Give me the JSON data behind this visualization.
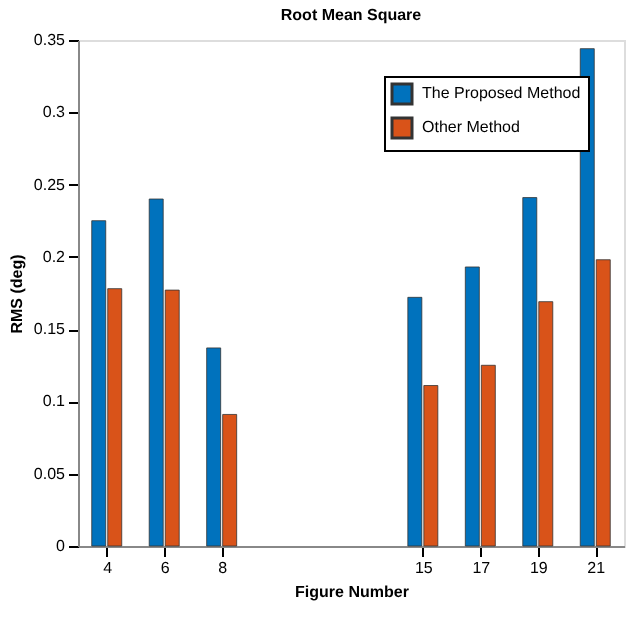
{
  "chart_data": {
    "type": "bar",
    "title": "Root Mean Square",
    "xlabel": "Figure Number",
    "ylabel": "RMS (deg)",
    "x": [
      4,
      6,
      8,
      15,
      17,
      19,
      21
    ],
    "series": [
      {
        "name": "The Proposed Method",
        "color": "#0072bd",
        "values": [
          0.225,
          0.24,
          0.137,
          0.172,
          0.193,
          0.241,
          0.344
        ]
      },
      {
        "name": "Other Method",
        "color": "#d95319",
        "values": [
          0.178,
          0.177,
          0.091,
          0.111,
          0.125,
          0.169,
          0.198
        ]
      }
    ],
    "xlim": [
      3,
      22
    ],
    "xticks": [
      4,
      6,
      8,
      15,
      17,
      19,
      21
    ],
    "ylim": [
      0,
      0.35
    ],
    "yticks": [
      0,
      0.05,
      0.1,
      0.15,
      0.2,
      0.25,
      0.3,
      0.35
    ],
    "grid": false,
    "legend": "top right"
  }
}
